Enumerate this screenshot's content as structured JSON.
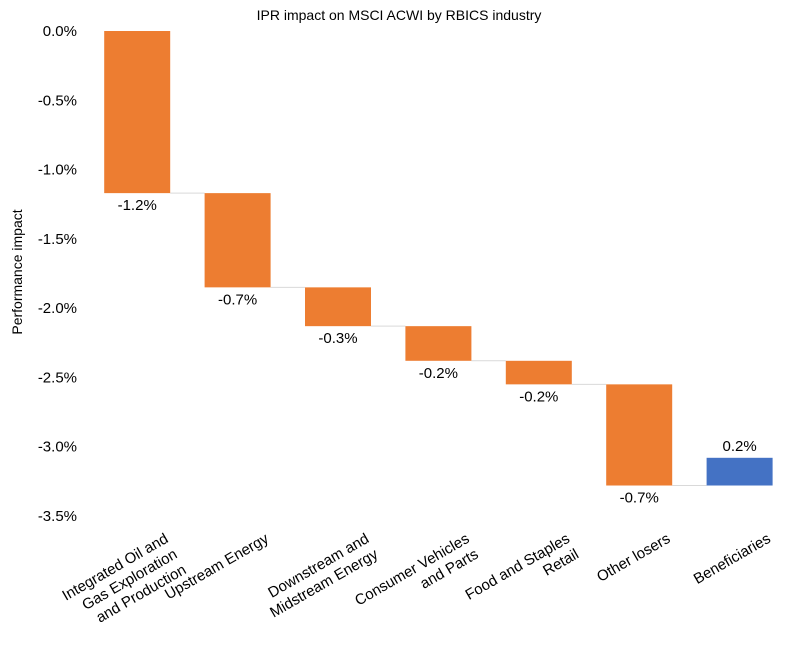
{
  "chart_data": {
    "type": "bar",
    "subtype": "waterfall",
    "title": "IPR impact on MSCI ACWI by RBICS industry",
    "xlabel": "",
    "ylabel": "Performance impact",
    "ylim": [
      -3.5,
      0.0
    ],
    "yticks": [
      "0.0%",
      "-0.5%",
      "-1.0%",
      "-1.5%",
      "-2.0%",
      "-2.5%",
      "-3.0%",
      "-3.5%"
    ],
    "grid": false,
    "legend": "none",
    "categories": [
      [
        "Integrated Oil and",
        "Gas Exploration",
        "and Production"
      ],
      [
        "Upstream Energy"
      ],
      [
        "Downstream and",
        "Midstream Energy"
      ],
      [
        "Consumer Vehicles",
        "and Parts"
      ],
      [
        "Food and Staples",
        "Retail"
      ],
      [
        "Other losers"
      ],
      [
        "Beneficiaries"
      ]
    ],
    "start": [
      0.0,
      -1.17,
      -1.85,
      -2.13,
      -2.38,
      -2.55,
      -3.28
    ],
    "end": [
      -1.17,
      -1.85,
      -2.13,
      -2.38,
      -2.55,
      -3.28,
      -3.08
    ],
    "value_labels": [
      "-1.2%",
      "-0.7%",
      "-0.3%",
      "-0.2%",
      "-0.2%",
      "-0.7%",
      "0.2%"
    ],
    "colors": {
      "negative": "#ED7D31",
      "positive": "#4472C4",
      "connector": "#D9D9D9"
    }
  }
}
